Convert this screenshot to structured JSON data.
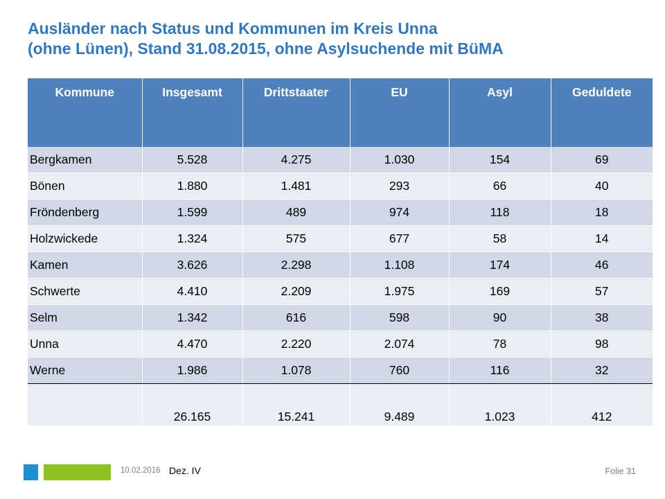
{
  "title": {
    "line1": "Ausländer nach Status und Kommunen im Kreis Unna",
    "line2": "(ohne Lünen), Stand 31.08.2015, ohne Asylsuchende mit BüMA"
  },
  "table": {
    "headers": [
      "Kommune",
      "Insgesamt",
      "Drittstaater",
      "EU",
      "Asyl",
      "Geduldete"
    ],
    "rows": [
      [
        "Bergkamen",
        "5.528",
        "4.275",
        "1.030",
        "154",
        "69"
      ],
      [
        "Bönen",
        "1.880",
        "1.481",
        "293",
        "66",
        "40"
      ],
      [
        "Fröndenberg",
        "1.599",
        "489",
        "974",
        "118",
        "18"
      ],
      [
        "Holzwickede",
        "1.324",
        "575",
        "677",
        "58",
        "14"
      ],
      [
        "Kamen",
        "3.626",
        "2.298",
        "1.108",
        "174",
        "46"
      ],
      [
        "Schwerte",
        "4.410",
        "2.209",
        "1.975",
        "169",
        "57"
      ],
      [
        "Selm",
        "1.342",
        "616",
        "598",
        "90",
        "38"
      ],
      [
        "Unna",
        "4.470",
        "2.220",
        "2.074",
        "78",
        "98"
      ],
      [
        "Werne",
        "1.986",
        "1.078",
        "760",
        "116",
        "32"
      ]
    ],
    "total": [
      "",
      "26.165",
      "15.241",
      "9.489",
      "1.023",
      "412"
    ]
  },
  "footer": {
    "date": "10.02.2016",
    "department": "Dez. IV",
    "slide": "Folie 31"
  },
  "colors": {
    "title": "#2f77c0",
    "header_bg": "#4f81bd",
    "row_dark": "#d0d8e8",
    "row_light": "#e9edf4",
    "footer_blue": "#1f8fce",
    "footer_green": "#8dc21f"
  }
}
